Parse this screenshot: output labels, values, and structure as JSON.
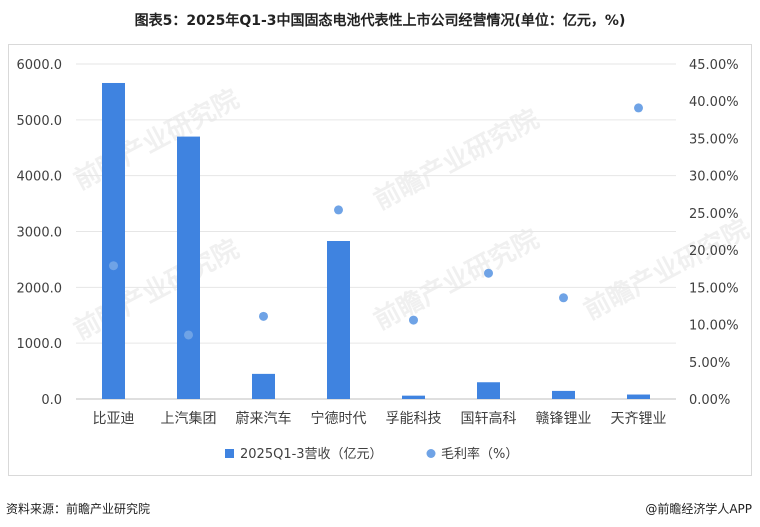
{
  "title": "图表5：2025年Q1-3中国固态电池代表性上市公司经营情况(单位：亿元，%)",
  "footer": {
    "source": "资料来源：前瞻产业研究院",
    "brand": "@前瞻经济学人APP"
  },
  "watermark": "前瞻产业研究院",
  "colors": {
    "bar": "#3f83e0",
    "dot": "#6fa3e6",
    "grid": "#e6e6e6"
  },
  "chart_data": {
    "type": "bar",
    "categories": [
      "比亚迪",
      "上汽集团",
      "蔚来汽车",
      "宁德时代",
      "孚能科技",
      "国轩高科",
      "赣锋锂业",
      "天齐锂业"
    ],
    "series": [
      {
        "name": "2025Q1-3营收（亿元）",
        "type": "bar",
        "axis": "left",
        "values": [
          5660,
          4700,
          450,
          2830,
          60,
          300,
          145,
          80
        ]
      },
      {
        "name": "毛利率（%）",
        "type": "scatter",
        "axis": "right",
        "values": [
          17.9,
          8.6,
          11.1,
          25.4,
          10.6,
          16.9,
          13.6,
          39.1
        ]
      }
    ],
    "yleft": {
      "ylim": [
        0,
        6000
      ],
      "ticks": [
        "0.0",
        "1000.0",
        "2000.0",
        "3000.0",
        "4000.0",
        "5000.0",
        "6000.0"
      ]
    },
    "yright": {
      "ylim": [
        0,
        45
      ],
      "ticks": [
        "0.00%",
        "5.00%",
        "10.00%",
        "15.00%",
        "20.00%",
        "25.00%",
        "30.00%",
        "35.00%",
        "40.00%",
        "45.00%"
      ]
    },
    "legend_position": "bottom"
  }
}
